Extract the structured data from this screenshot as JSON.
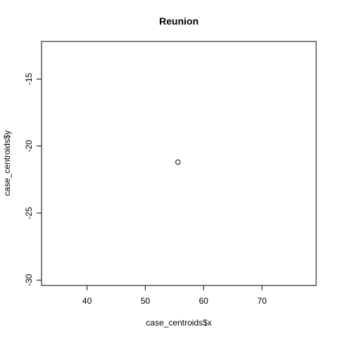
{
  "chart_data": {
    "type": "scatter",
    "title": "Reunion",
    "xlabel": "case_centroids$x",
    "ylabel": "case_centroids$y",
    "xlim": [
      32.2,
      79.3
    ],
    "ylim": [
      -30.4,
      -12.2
    ],
    "x_ticks": [
      40,
      50,
      60,
      70
    ],
    "y_ticks": [
      -15,
      -20,
      -25,
      -30
    ],
    "x_tick_labels": [
      "40",
      "50",
      "60",
      "70"
    ],
    "y_tick_labels": [
      "-15",
      "-20",
      "-25",
      "-30"
    ],
    "grid": false,
    "marker": "open-circle",
    "points": [
      {
        "x": 55.6,
        "y": -21.2
      }
    ]
  },
  "colors": {
    "background": "#ffffff",
    "axis": "#000000",
    "points": "#000000"
  }
}
